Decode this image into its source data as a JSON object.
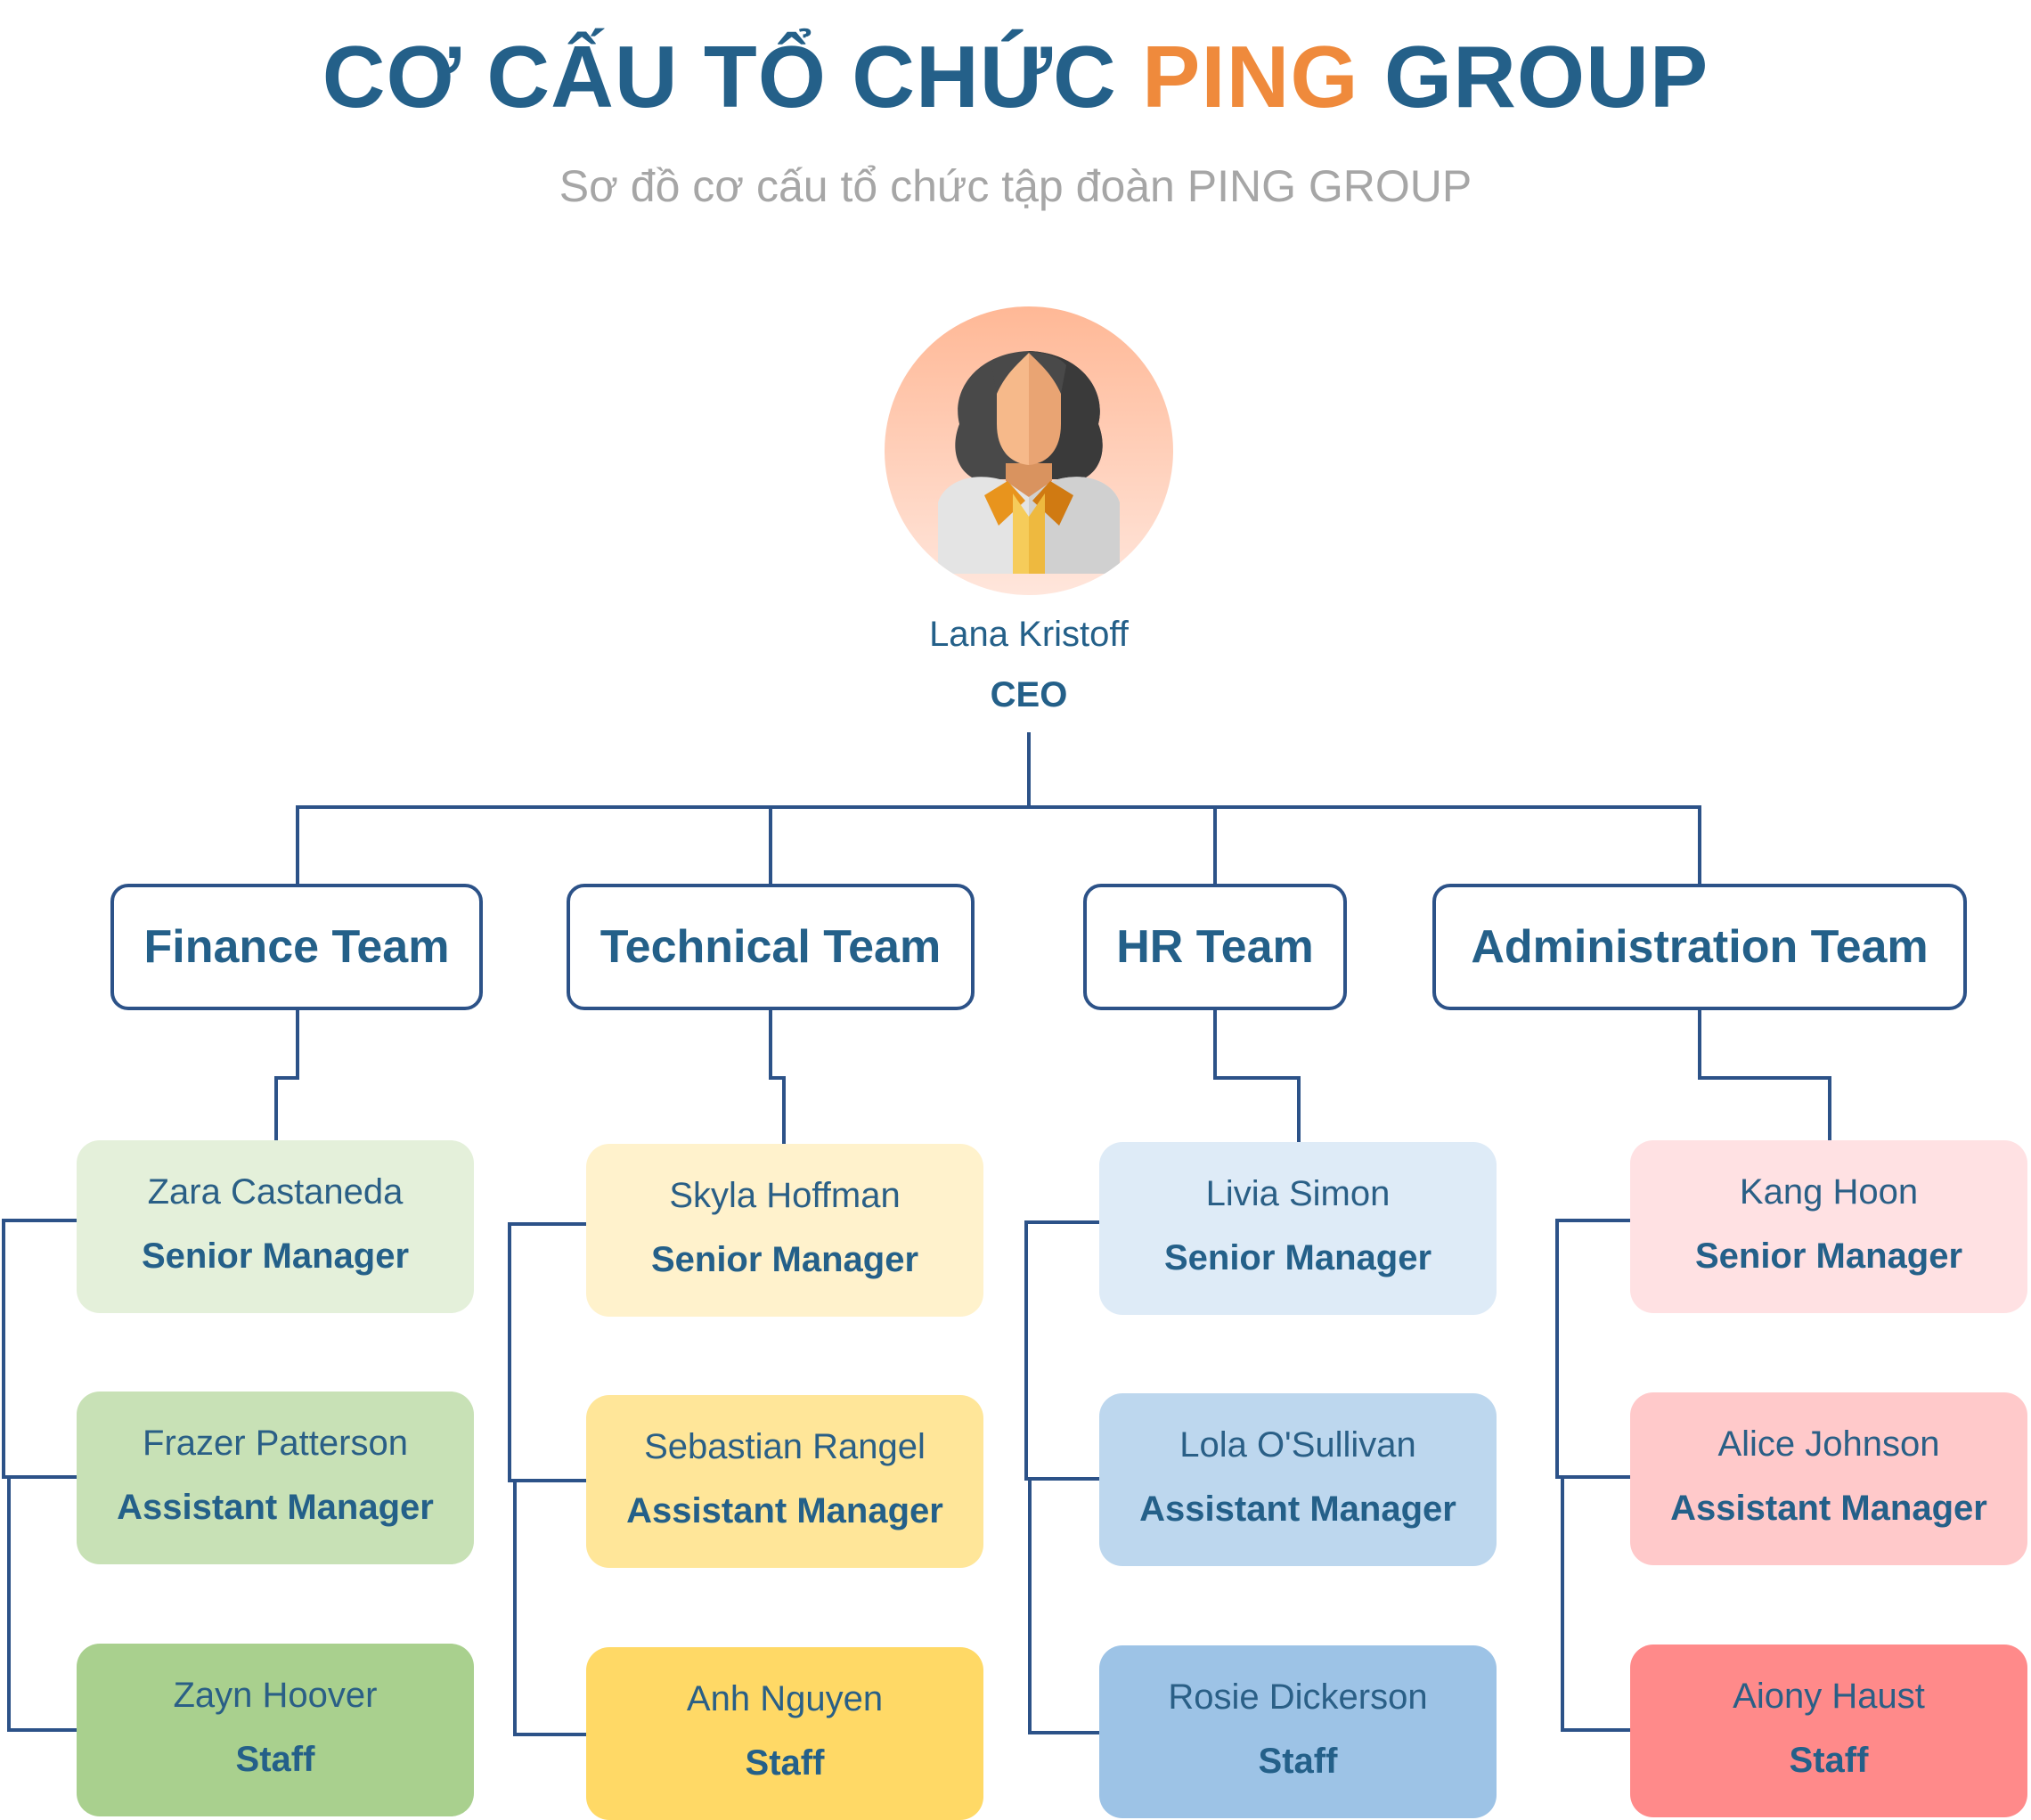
{
  "title": {
    "main": "CƠ CẤU TỔ CHỨC",
    "accent": "PING",
    "tail": "GROUP"
  },
  "subtitle": "Sơ đồ cơ cấu tổ chức tập đoàn PING GROUP",
  "colors": {
    "primary": "#246089",
    "accent": "#ef8a3c",
    "line": "#2c5288",
    "subtitle": "#a6a6a6"
  },
  "ceo": {
    "name": "Lana Kristoff",
    "role": "CEO",
    "icon": "woman-avatar-icon"
  },
  "teams": [
    {
      "name": "Finance Team",
      "members": [
        {
          "name": "Zara Castaneda",
          "role": "Senior Manager",
          "color": "#e4f0da"
        },
        {
          "name": "Frazer Patterson",
          "role": "Assistant Manager",
          "color": "#c8e1b6"
        },
        {
          "name": "Zayn Hoover",
          "role": "Staff",
          "color": "#a9d08e"
        }
      ]
    },
    {
      "name": "Technical Team",
      "members": [
        {
          "name": "Skyla Hoffman",
          "role": "Senior Manager",
          "color": "#fff2cc"
        },
        {
          "name": "Sebastian Rangel",
          "role": "Assistant Manager",
          "color": "#ffe699"
        },
        {
          "name": "Anh Nguyen",
          "role": "Staff",
          "color": "#ffd966"
        }
      ]
    },
    {
      "name": "HR Team",
      "members": [
        {
          "name": "Livia Simon",
          "role": "Senior Manager",
          "color": "#deebf7"
        },
        {
          "name": "Lola O'Sullivan",
          "role": "Assistant Manager",
          "color": "#bdd7ee"
        },
        {
          "name": "Rosie Dickerson",
          "role": "Staff",
          "color": "#9dc3e6"
        }
      ]
    },
    {
      "name": "Administration Team",
      "members": [
        {
          "name": "Kang Hoon",
          "role": "Senior Manager",
          "color": "#ffe1e3"
        },
        {
          "name": "Alice Johnson",
          "role": "Assistant Manager",
          "color": "#ffc9ca"
        },
        {
          "name": "Aiony Haust",
          "role": "Staff",
          "color": "#ff8a8a"
        }
      ]
    }
  ]
}
